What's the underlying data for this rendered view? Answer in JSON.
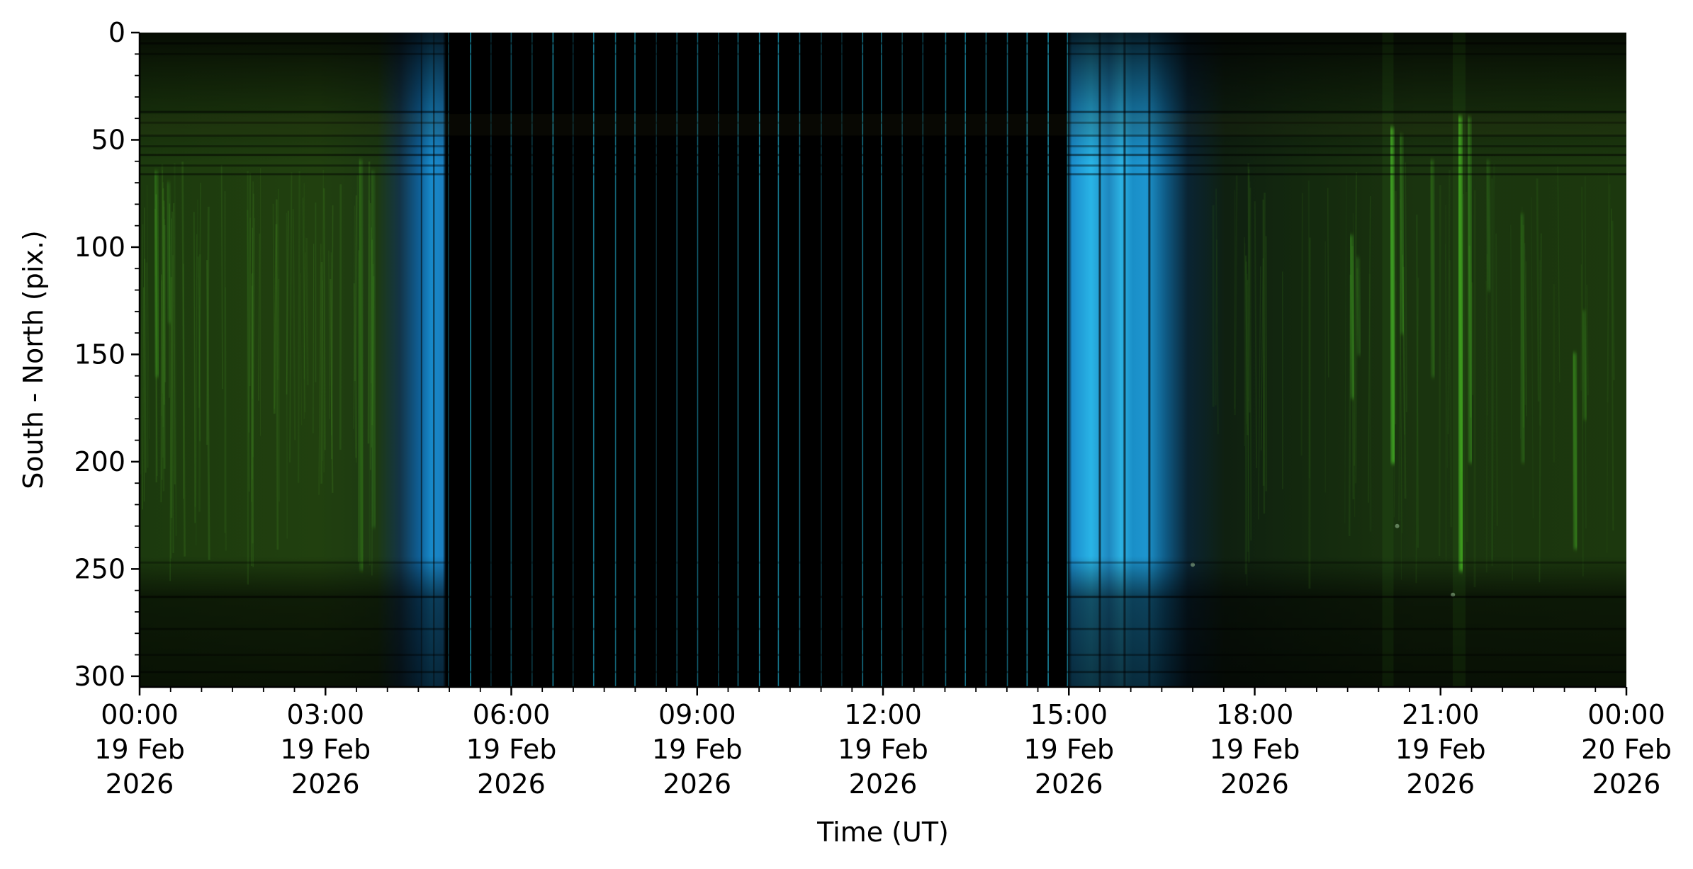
{
  "chart_data": {
    "type": "heatmap",
    "title": "",
    "xlabel": "Time (UT)",
    "ylabel": "South - North (pix.)",
    "xlim": [
      "2026-02-19T00:00",
      "2026-02-20T00:00"
    ],
    "ylim": [
      305,
      0
    ],
    "grid": false,
    "y_ticks": [
      {
        "value": 0,
        "label": "0"
      },
      {
        "value": 50,
        "label": "50"
      },
      {
        "value": 100,
        "label": "100"
      },
      {
        "value": 150,
        "label": "150"
      },
      {
        "value": 200,
        "label": "200"
      },
      {
        "value": 250,
        "label": "250"
      },
      {
        "value": 300,
        "label": "300"
      }
    ],
    "x_ticks": [
      {
        "value": "2026-02-19T00:00",
        "lines": [
          "00:00",
          "19 Feb",
          "2026"
        ]
      },
      {
        "value": "2026-02-19T03:00",
        "lines": [
          "03:00",
          "19 Feb",
          "2026"
        ]
      },
      {
        "value": "2026-02-19T06:00",
        "lines": [
          "06:00",
          "19 Feb",
          "2026"
        ]
      },
      {
        "value": "2026-02-19T09:00",
        "lines": [
          "09:00",
          "19 Feb",
          "2026"
        ]
      },
      {
        "value": "2026-02-19T12:00",
        "lines": [
          "12:00",
          "19 Feb",
          "2026"
        ]
      },
      {
        "value": "2026-02-19T15:00",
        "lines": [
          "15:00",
          "19 Feb",
          "2026"
        ]
      },
      {
        "value": "2026-02-19T18:00",
        "lines": [
          "18:00",
          "19 Feb",
          "2026"
        ]
      },
      {
        "value": "2026-02-19T21:00",
        "lines": [
          "21:00",
          "19 Feb",
          "2026"
        ]
      },
      {
        "value": "2026-02-20T00:00",
        "lines": [
          "00:00",
          "20 Feb",
          "2026"
        ]
      }
    ],
    "colors": {
      "night_green": "#1f3f0c",
      "aurora_green": "#4fcf2a",
      "twilight_blue": "#1a9ee0",
      "daylight": "#000000",
      "orange_streak": "#d99a2e"
    }
  }
}
